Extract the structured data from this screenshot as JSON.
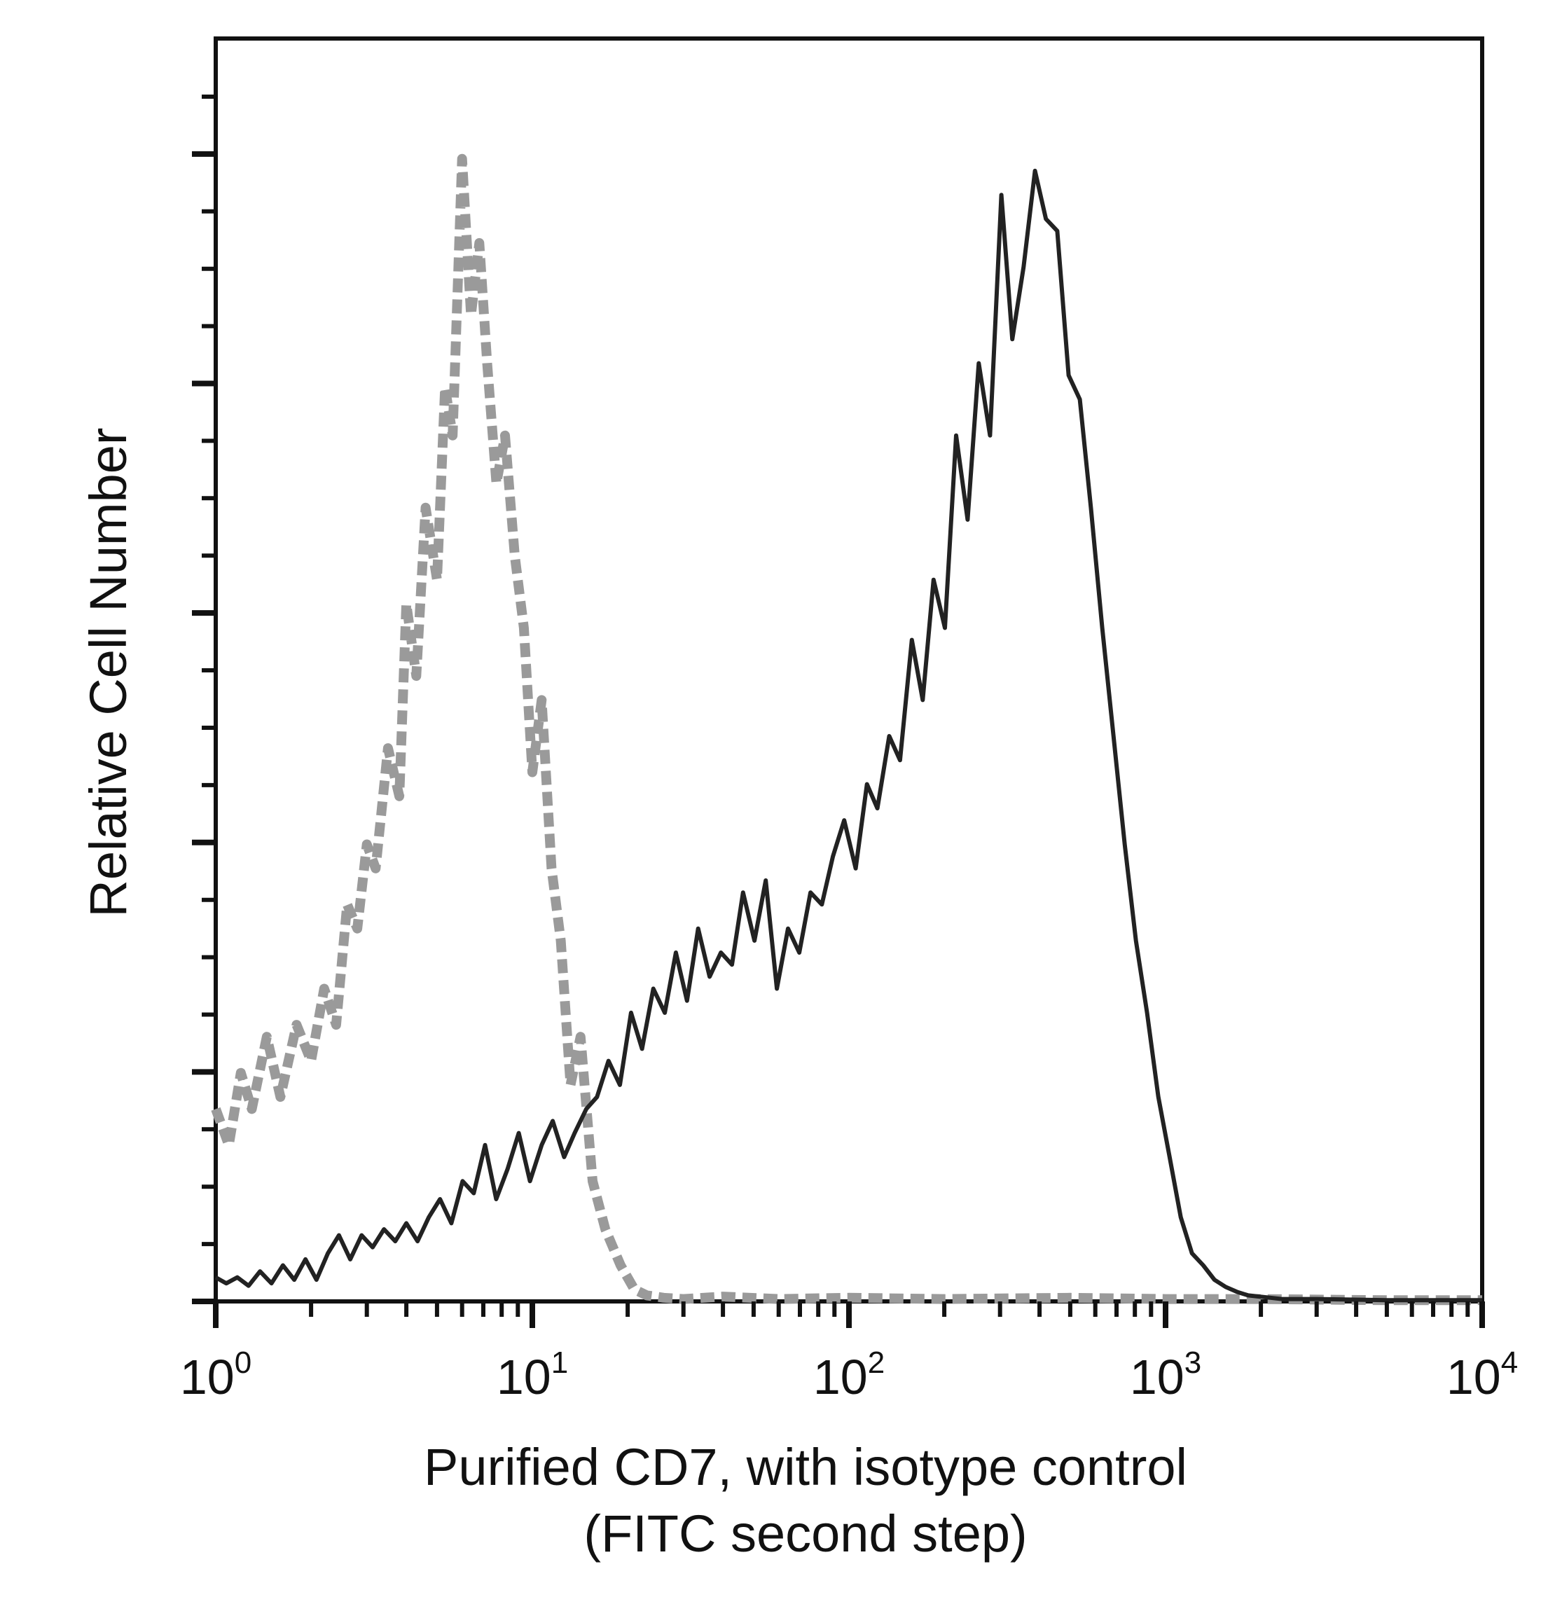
{
  "chart_data": {
    "type": "line",
    "title": "",
    "xlabel": "Purified CD7, with isotype control",
    "xlabel_line2": "(FITC second step)",
    "ylabel": "Relative Cell Number",
    "x_scale": "log",
    "xlim": [
      1,
      10000
    ],
    "ylim": [
      0,
      105
    ],
    "grid": false,
    "legend": "none",
    "x_tick_labels": [
      {
        "value": 1,
        "base": "10",
        "exp": "0"
      },
      {
        "value": 10,
        "base": "10",
        "exp": "1"
      },
      {
        "value": 100,
        "base": "10",
        "exp": "2"
      },
      {
        "value": 1000,
        "base": "10",
        "exp": "3"
      },
      {
        "value": 10000,
        "base": "10",
        "exp": "4"
      }
    ],
    "series": [
      {
        "color": "#9a9a9a",
        "style": "dashed",
        "x": [
          1,
          1.1,
          1.2,
          1.3,
          1.45,
          1.6,
          1.8,
          2.0,
          2.2,
          2.4,
          2.6,
          2.8,
          3.0,
          3.2,
          3.5,
          3.8,
          4.0,
          4.3,
          4.6,
          5.0,
          5.3,
          5.6,
          6.0,
          6.4,
          6.8,
          7.2,
          7.7,
          8.2,
          8.8,
          9.4,
          10,
          10.7,
          11.5,
          12.3,
          13.2,
          14.2,
          15.5,
          17,
          19,
          21,
          23,
          26,
          30,
          40,
          60,
          100,
          200,
          500,
          1000,
          2000,
          5000,
          10000
        ],
        "values": [
          16,
          13,
          19,
          16,
          22,
          17,
          23,
          20,
          26,
          23,
          33,
          31,
          38,
          36,
          46,
          42,
          58,
          52,
          66,
          60,
          76,
          72,
          95,
          82,
          88,
          78,
          68,
          72,
          62,
          56,
          44,
          50,
          36,
          30,
          18,
          22,
          10,
          6,
          3,
          1,
          0.5,
          0.3,
          0.2,
          0.4,
          0.2,
          0.3,
          0.2,
          0.3,
          0.2,
          0.2,
          0.1,
          0.1
        ]
      },
      {
        "color": "#222222",
        "style": "solid",
        "x": [
          1,
          1.08,
          1.17,
          1.27,
          1.38,
          1.5,
          1.63,
          1.77,
          1.92,
          2.08,
          2.26,
          2.45,
          2.66,
          2.89,
          3.13,
          3.4,
          3.69,
          4.0,
          4.34,
          4.71,
          5.11,
          5.55,
          6.02,
          6.53,
          7.09,
          7.69,
          8.35,
          9.06,
          9.83,
          10.7,
          11.6,
          12.6,
          13.6,
          14.8,
          16.0,
          17.4,
          18.9,
          20.5,
          22.2,
          24.1,
          26.2,
          28.4,
          30.8,
          33.4,
          36.3,
          39.4,
          42.7,
          46.3,
          50.3,
          54.6,
          59.2,
          64.2,
          69.7,
          75.6,
          82.1,
          89.0,
          96.6,
          105,
          114,
          123,
          134,
          145,
          158,
          171,
          185,
          201,
          218,
          237,
          257,
          279,
          303,
          328,
          356,
          387,
          419,
          455,
          494,
          536,
          581,
          631,
          685,
          743,
          806,
          874,
          949,
          1030,
          1117,
          1212,
          1315,
          1427,
          1549,
          1680,
          1823,
          1978,
          2147,
          2330,
          3000,
          5000,
          10000
        ],
        "values": [
          2,
          1.5,
          2,
          1.3,
          2.5,
          1.5,
          3,
          1.8,
          3.5,
          1.8,
          4,
          5.5,
          3.5,
          5.5,
          4.5,
          6,
          5,
          6.5,
          5,
          7,
          8.5,
          6.5,
          10,
          9,
          13,
          8.5,
          11,
          14,
          10,
          13,
          15,
          12,
          14,
          16,
          17,
          20,
          18,
          24,
          21,
          26,
          24,
          29,
          25,
          31,
          27,
          29,
          28,
          34,
          30,
          35,
          26,
          31,
          29,
          34,
          33,
          37,
          40,
          36,
          43,
          41,
          47,
          45,
          55,
          50,
          60,
          56,
          72,
          65,
          78,
          72,
          92,
          80,
          86,
          94,
          90,
          89,
          77,
          75,
          66,
          56,
          47,
          38,
          30,
          24,
          17,
          12,
          7,
          4,
          3,
          1.8,
          1.2,
          0.8,
          0.5,
          0.4,
          0.3,
          0.2,
          0.2,
          0.1,
          0.1
        ]
      }
    ]
  }
}
